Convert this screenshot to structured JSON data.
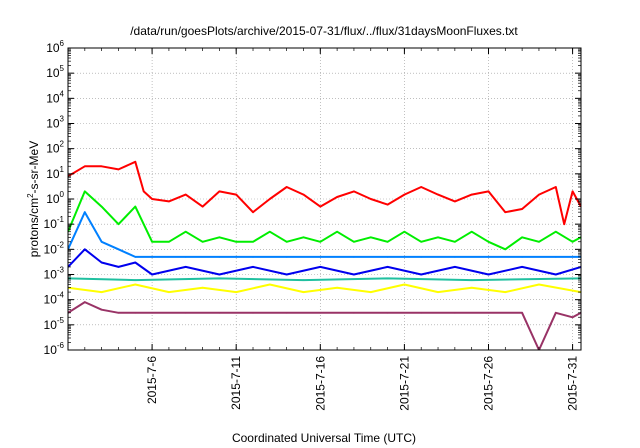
{
  "chart_data": {
    "type": "line",
    "title": "/data/run/goesPlots/archive/2015-07-31/flux/../flux/31daysMoonFluxes.txt",
    "xlabel": "Coordinated Universal Time (UTC)",
    "ylabel_main": "protons/cm",
    "ylabel_sup": "2",
    "ylabel_rest": "-s-sr-MeV",
    "y_scale": "log",
    "ylim": [
      1e-06,
      1000000.0
    ],
    "xlim": [
      "2015-07-01",
      "2015-07-31 12:00"
    ],
    "grid": true,
    "legend": "none",
    "y_ticks": [
      {
        "mant": "10",
        "exp": "-6"
      },
      {
        "mant": "10",
        "exp": "-5"
      },
      {
        "mant": "10",
        "exp": "-4"
      },
      {
        "mant": "10",
        "exp": "-3"
      },
      {
        "mant": "10",
        "exp": "-2"
      },
      {
        "mant": "10",
        "exp": "-1"
      },
      {
        "mant": "10",
        "exp": "0"
      },
      {
        "mant": "10",
        "exp": "1"
      },
      {
        "mant": "10",
        "exp": "2"
      },
      {
        "mant": "10",
        "exp": "3"
      },
      {
        "mant": "10",
        "exp": "4"
      },
      {
        "mant": "10",
        "exp": "5"
      },
      {
        "mant": "10",
        "exp": "6"
      }
    ],
    "x_ticks": [
      "2015-7-6",
      "2015-7-11",
      "2015-7-16",
      "2015-7-21",
      "2015-7-26",
      "2015-7-31"
    ],
    "x_tick_dates": [
      "2015-07-06",
      "2015-07-11",
      "2015-07-16",
      "2015-07-21",
      "2015-07-26",
      "2015-07-31"
    ],
    "series": [
      {
        "color": "#ff0000",
        "x": [
          "2015-07-01",
          "2015-07-02",
          "2015-07-03",
          "2015-07-04",
          "2015-07-05",
          "2015-07-05 12:00",
          "2015-07-06",
          "2015-07-07",
          "2015-07-08",
          "2015-07-09",
          "2015-07-10",
          "2015-07-11",
          "2015-07-12",
          "2015-07-13",
          "2015-07-14",
          "2015-07-15",
          "2015-07-16",
          "2015-07-17",
          "2015-07-18",
          "2015-07-19",
          "2015-07-20",
          "2015-07-21",
          "2015-07-22",
          "2015-07-23",
          "2015-07-24",
          "2015-07-25",
          "2015-07-26",
          "2015-07-27",
          "2015-07-28",
          "2015-07-29",
          "2015-07-30",
          "2015-07-30 12:00",
          "2015-07-31",
          "2015-07-31 12:00"
        ],
        "values": [
          8,
          20,
          20,
          15,
          30,
          2,
          1,
          0.8,
          1.5,
          0.5,
          2,
          1.5,
          0.3,
          1,
          3,
          1.5,
          0.5,
          1.2,
          2,
          1,
          0.6,
          1.5,
          3,
          1.5,
          0.8,
          1.5,
          2,
          0.3,
          0.4,
          1.5,
          3,
          0.1,
          2,
          0.5
        ]
      },
      {
        "color": "#00ee00",
        "x": [
          "2015-07-01",
          "2015-07-02",
          "2015-07-03",
          "2015-07-04",
          "2015-07-05",
          "2015-07-06",
          "2015-07-07",
          "2015-07-08",
          "2015-07-09",
          "2015-07-10",
          "2015-07-11",
          "2015-07-12",
          "2015-07-13",
          "2015-07-14",
          "2015-07-15",
          "2015-07-16",
          "2015-07-17",
          "2015-07-18",
          "2015-07-19",
          "2015-07-20",
          "2015-07-21",
          "2015-07-22",
          "2015-07-23",
          "2015-07-24",
          "2015-07-25",
          "2015-07-26",
          "2015-07-27",
          "2015-07-28",
          "2015-07-29",
          "2015-07-30",
          "2015-07-31",
          "2015-07-31 12:00"
        ],
        "values": [
          0.05,
          2,
          0.5,
          0.1,
          0.5,
          0.02,
          0.02,
          0.05,
          0.02,
          0.03,
          0.02,
          0.02,
          0.05,
          0.02,
          0.03,
          0.02,
          0.05,
          0.02,
          0.03,
          0.02,
          0.05,
          0.02,
          0.03,
          0.02,
          0.05,
          0.02,
          0.01,
          0.03,
          0.02,
          0.05,
          0.02,
          0.03
        ]
      },
      {
        "color": "#0080ff",
        "x": [
          "2015-07-01",
          "2015-07-02",
          "2015-07-03",
          "2015-07-04",
          "2015-07-05",
          "2015-07-06",
          "2015-07-08",
          "2015-07-10",
          "2015-07-12",
          "2015-07-14",
          "2015-07-16",
          "2015-07-18",
          "2015-07-20",
          "2015-07-22",
          "2015-07-24",
          "2015-07-26",
          "2015-07-28",
          "2015-07-30",
          "2015-07-31 12:00"
        ],
        "values": [
          0.01,
          0.3,
          0.02,
          0.01,
          0.005,
          0.005,
          0.005,
          0.005,
          0.005,
          0.005,
          0.005,
          0.005,
          0.005,
          0.005,
          0.005,
          0.005,
          0.005,
          0.005,
          0.005
        ]
      },
      {
        "color": "#0000ee",
        "x": [
          "2015-07-01",
          "2015-07-02",
          "2015-07-03",
          "2015-07-04",
          "2015-07-05",
          "2015-07-06",
          "2015-07-08",
          "2015-07-10",
          "2015-07-12",
          "2015-07-14",
          "2015-07-16",
          "2015-07-18",
          "2015-07-20",
          "2015-07-22",
          "2015-07-24",
          "2015-07-26",
          "2015-07-28",
          "2015-07-30",
          "2015-07-31 12:00"
        ],
        "values": [
          0.002,
          0.01,
          0.003,
          0.002,
          0.003,
          0.001,
          0.002,
          0.001,
          0.002,
          0.001,
          0.002,
          0.001,
          0.002,
          0.001,
          0.002,
          0.001,
          0.002,
          0.001,
          0.002
        ]
      },
      {
        "color": "#20c0a0",
        "x": [
          "2015-07-01",
          "2015-07-05",
          "2015-07-10",
          "2015-07-15",
          "2015-07-20",
          "2015-07-25",
          "2015-07-31 12:00"
        ],
        "values": [
          0.0007,
          0.0006,
          0.0007,
          0.0006,
          0.0007,
          0.0006,
          0.0007
        ]
      },
      {
        "color": "#ffff00",
        "x": [
          "2015-07-01",
          "2015-07-03",
          "2015-07-05",
          "2015-07-07",
          "2015-07-09",
          "2015-07-11",
          "2015-07-13",
          "2015-07-15",
          "2015-07-17",
          "2015-07-19",
          "2015-07-21",
          "2015-07-23",
          "2015-07-25",
          "2015-07-27",
          "2015-07-29",
          "2015-07-31 12:00"
        ],
        "values": [
          0.0003,
          0.0002,
          0.0004,
          0.0002,
          0.0003,
          0.0002,
          0.0004,
          0.0002,
          0.0003,
          0.0002,
          0.0004,
          0.0002,
          0.0003,
          0.0002,
          0.0004,
          0.0002
        ]
      },
      {
        "color": "#993366",
        "x": [
          "2015-07-01",
          "2015-07-02",
          "2015-07-03",
          "2015-07-04",
          "2015-07-05",
          "2015-07-06",
          "2015-07-08",
          "2015-07-10",
          "2015-07-12",
          "2015-07-14",
          "2015-07-16",
          "2015-07-18",
          "2015-07-20",
          "2015-07-22",
          "2015-07-24",
          "2015-07-26",
          "2015-07-28",
          "2015-07-29",
          "2015-07-30",
          "2015-07-31",
          "2015-07-31 12:00"
        ],
        "values": [
          3e-05,
          8e-05,
          4e-05,
          3e-05,
          3e-05,
          3e-05,
          3e-05,
          3e-05,
          3e-05,
          3e-05,
          3e-05,
          3e-05,
          3e-05,
          3e-05,
          3e-05,
          3e-05,
          3e-05,
          1e-06,
          3e-05,
          2e-05,
          3e-05
        ]
      }
    ]
  }
}
